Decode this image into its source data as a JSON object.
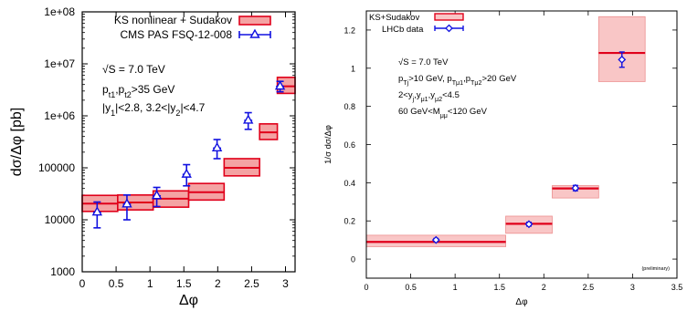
{
  "colors": {
    "model_line": "#e0001a",
    "model_fill": "#f4a3a3",
    "model_fill_light": "#f9c6c6",
    "data": "#1010e0",
    "frame": "#000000"
  },
  "chart_data": [
    {
      "type": "line",
      "ylabel": "dσ/Δφ [pb]",
      "xlabel": "Δφ",
      "xlim": [
        0,
        3.14159
      ],
      "ylim": [
        1000,
        100000000
      ],
      "yscale": "log",
      "xticks": [
        0,
        0.5,
        1,
        1.5,
        2,
        2.5,
        3
      ],
      "xtick_labels": [
        "0",
        "0.5",
        "1",
        "1.5",
        "2",
        "2.5",
        "3"
      ],
      "yticks": [
        1000,
        10000,
        100000,
        1000000,
        10000000,
        100000000
      ],
      "ytick_labels": [
        "1000",
        "10000",
        "100000",
        "1e+06",
        "1e+07",
        "1e+08"
      ],
      "legend_position": "top-right",
      "annotations": [
        "√S = 7.0 TeV",
        "pt1,pt2>35 GeV",
        "|y1|<2.8, 3.2<|y2|<4.7"
      ],
      "series": [
        {
          "name": "KS nonlinear + Sudakov",
          "kind": "band",
          "bins": [
            {
              "x0": 0.0,
              "x1": 0.5236,
              "central": 20500,
              "low": 14500,
              "high": 29500
            },
            {
              "x0": 0.5236,
              "x1": 1.0472,
              "central": 21500,
              "low": 15500,
              "high": 30000
            },
            {
              "x0": 1.0472,
              "x1": 1.5708,
              "central": 25500,
              "low": 17500,
              "high": 36000
            },
            {
              "x0": 1.5708,
              "x1": 2.0944,
              "central": 34000,
              "low": 24000,
              "high": 50000
            },
            {
              "x0": 2.0944,
              "x1": 2.618,
              "central": 100000,
              "low": 70000,
              "high": 150000
            },
            {
              "x0": 2.618,
              "x1": 2.8798,
              "central": 480000,
              "low": 350000,
              "high": 700000
            },
            {
              "x0": 2.8798,
              "x1": 3.1416,
              "central": 3700000,
              "low": 2700000,
              "high": 5500000
            }
          ]
        },
        {
          "name": "CMS PAS FSQ-12-008",
          "kind": "points",
          "marker": "triangle",
          "points": [
            {
              "x": 0.22,
              "y": 14000,
              "err_low": 7000,
              "err_high": 22000,
              "xerr": 0.06
            },
            {
              "x": 0.66,
              "y": 20000,
              "err_low": 10000,
              "err_high": 30000,
              "xerr": 0.06
            },
            {
              "x": 1.1,
              "y": 29000,
              "err_low": 18000,
              "err_high": 42000,
              "xerr": 0.06
            },
            {
              "x": 1.54,
              "y": 75000,
              "err_low": 45000,
              "err_high": 115000,
              "xerr": 0.06
            },
            {
              "x": 1.99,
              "y": 240000,
              "err_low": 150000,
              "err_high": 350000,
              "xerr": 0.06
            },
            {
              "x": 2.45,
              "y": 820000,
              "err_low": 550000,
              "err_high": 1150000,
              "xerr": 0.06
            },
            {
              "x": 2.92,
              "y": 3700000,
              "err_low": 2900000,
              "err_high": 4600000,
              "xerr": 0.06
            }
          ]
        }
      ]
    },
    {
      "type": "line",
      "ylabel": "1/σ dσ/Δφ",
      "xlabel": "Δφ",
      "xlim": [
        0,
        3.5
      ],
      "ylim": [
        -0.1,
        1.3
      ],
      "xticks": [
        0,
        0.5,
        1,
        1.5,
        2,
        2.5,
        3,
        3.5
      ],
      "xtick_labels": [
        "0",
        "0.5",
        "1",
        "1.5",
        "2",
        "2.5",
        "3",
        "3.5"
      ],
      "yticks": [
        0,
        0.2,
        0.4,
        0.6,
        0.8,
        1,
        1.2
      ],
      "ytick_labels": [
        "0",
        "0.2",
        "0.4",
        "0.6",
        "0.8",
        "1",
        "1.2"
      ],
      "legend_position": "top-left",
      "annotations": [
        "√S = 7.0 TeV",
        "pTj>10 GeV, pTμ1,pTμ2>20 GeV",
        "2<yj,yμ1,yμ2<4.5",
        "60 GeV<Mμμ<120 GeV"
      ],
      "note": "(preliminary)",
      "series": [
        {
          "name": "KS+Sudakov",
          "kind": "band",
          "bins": [
            {
              "x0": 0.0,
              "x1": 1.5708,
              "central": 0.09,
              "low": 0.065,
              "high": 0.125
            },
            {
              "x0": 1.5708,
              "x1": 2.0944,
              "central": 0.185,
              "low": 0.135,
              "high": 0.225
            },
            {
              "x0": 2.0944,
              "x1": 2.618,
              "central": 0.37,
              "low": 0.32,
              "high": 0.385
            },
            {
              "x0": 2.618,
              "x1": 3.1416,
              "central": 1.08,
              "low": 0.93,
              "high": 1.27
            }
          ]
        },
        {
          "name": "LHCb data",
          "kind": "points",
          "marker": "diamond",
          "points": [
            {
              "x": 0.785,
              "y": 0.1,
              "err_low": 0.092,
              "err_high": 0.108,
              "xerr": 0.06
            },
            {
              "x": 1.832,
              "y": 0.183,
              "err_low": 0.173,
              "err_high": 0.193,
              "xerr": 0.06
            },
            {
              "x": 2.356,
              "y": 0.372,
              "err_low": 0.358,
              "err_high": 0.386,
              "xerr": 0.06
            },
            {
              "x": 2.88,
              "y": 1.045,
              "err_low": 1.005,
              "err_high": 1.085,
              "xerr": 0.06
            }
          ]
        }
      ]
    }
  ]
}
